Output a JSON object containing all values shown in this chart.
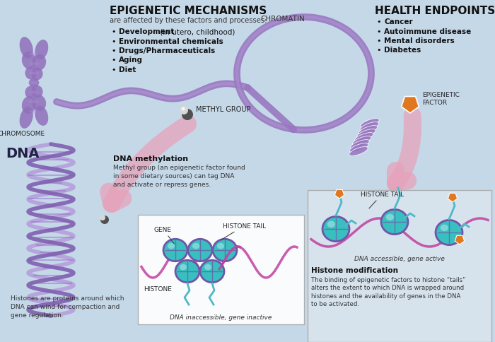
{
  "bg_color": "#c5d8e8",
  "title_epigenetic": "EPIGENETIC MECHANISMS",
  "subtitle_epigenetic": "are affected by these factors and processes:",
  "factors": [
    [
      "Development",
      " (in utero, childhood)"
    ],
    [
      "Environmental chemicals",
      ""
    ],
    [
      "Drugs/Pharmaceuticals",
      ""
    ],
    [
      "Aging",
      ""
    ],
    [
      "Diet",
      ""
    ]
  ],
  "title_health": "HEALTH ENDPOINTS",
  "health_items": [
    "Cancer",
    "Autoimmune disease",
    "Mental disorders",
    "Diabetes"
  ],
  "label_chromosome": "CHROMOSOME",
  "label_chromatin": "CHROMATIN",
  "label_methyl": "METHYL GROUP",
  "label_dna": "DNA",
  "label_epigenetic_factor": "EPIGENETIC\nFACTOR",
  "label_dna_methylation": "DNA methylation",
  "text_methylation": "Methyl group (an epigenetic factor found\nin some dietary sources) can tag DNA\nand activate or repress genes.",
  "label_gene": "GENE",
  "label_histone": "HISTONE",
  "label_histone_tail_left": "HISTONE TAIL",
  "label_histone_tail_right": "HISTONE TAIL",
  "label_dna_inaccessible": "DNA inaccessible, gene inactive",
  "label_dna_accessible": "DNA accessible, gene active",
  "label_histone_mod": "Histone modification",
  "text_histone_mod": "The binding of epigenetic factors to histone “tails”\nalters the extent to which DNA is wrapped around\nhistones and the availability of genes in the DNA\nto be activated.",
  "text_histones": "Histones are proteins around which\nDNA can wind for compaction and\ngene regulation.",
  "chromosome_color": "#9070bb",
  "chromatin_color": "#9878c0",
  "dna_helix_color": "#8060b0",
  "histone_fill_color": "#38bfbf",
  "histone_border_color": "#7055a8",
  "histone_tail_color": "#50b8c8",
  "arrow_color": "#e8a0b8",
  "arrow_color2": "#f0b8c8",
  "epigenetic_factor_color": "#e07820",
  "methyl_dark": "#505050",
  "methyl_light": "#d8d8d8",
  "text_color": "#111111",
  "box1_fill": "#ffffff",
  "box2_fill": "#d8e4ee",
  "box_border": "#aaaaaa"
}
